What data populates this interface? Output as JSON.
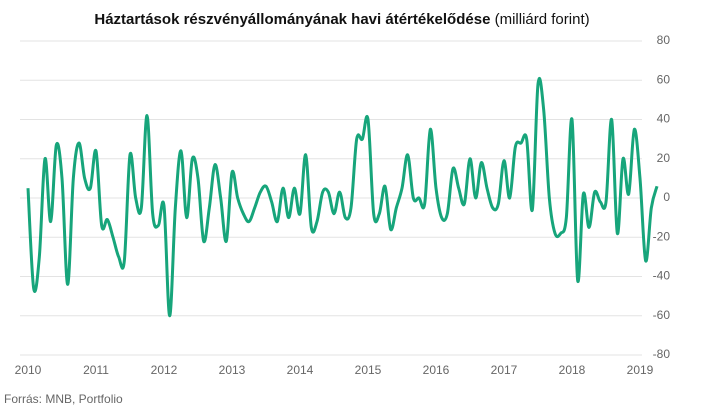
{
  "chart_data": {
    "type": "line",
    "title": "Háztartások részvényállományának havi átértékelődése",
    "subtitle": "(milliárd forint)",
    "source": "Forrás: MNB, Portfolio",
    "categories": [
      "2010",
      null,
      null,
      null,
      null,
      null,
      null,
      null,
      null,
      null,
      null,
      null,
      "2011",
      null,
      null,
      null,
      null,
      null,
      null,
      null,
      null,
      null,
      null,
      null,
      "2012",
      null,
      null,
      null,
      null,
      null,
      null,
      null,
      null,
      null,
      null,
      null,
      "2013",
      null,
      null,
      null,
      null,
      null,
      null,
      null,
      null,
      null,
      null,
      null,
      "2014",
      null,
      null,
      null,
      null,
      null,
      null,
      null,
      null,
      null,
      null,
      null,
      "2015",
      null,
      null,
      null,
      null,
      null,
      null,
      null,
      null,
      null,
      null,
      null,
      "2016",
      null,
      null,
      null,
      null,
      null,
      null,
      null,
      null,
      null,
      null,
      null,
      "2017",
      null,
      null,
      null,
      null,
      null,
      null,
      null,
      null,
      null,
      null,
      null,
      "2018",
      null,
      null,
      null,
      null,
      null,
      null,
      null,
      null,
      null,
      null,
      null,
      "2019",
      null,
      null,
      null
    ],
    "series": [
      {
        "color": "#17a57b",
        "values": [
          5,
          -46,
          -30,
          20,
          -12,
          27,
          10,
          -44,
          10,
          28,
          10,
          5,
          24,
          -14,
          -11,
          -20,
          -30,
          -32,
          22,
          0,
          -5,
          42,
          -8,
          -14,
          -4,
          -60,
          -5,
          24,
          -10,
          20,
          10,
          -22,
          -5,
          17,
          0,
          -22,
          13,
          0,
          -8,
          -12,
          -5,
          3,
          6,
          -2,
          -12,
          5,
          -10,
          5,
          -8,
          22,
          -15,
          -12,
          3,
          3,
          -8,
          3,
          -10,
          -5,
          30,
          30,
          40,
          -8,
          -8,
          6,
          -16,
          -5,
          5,
          22,
          0,
          0,
          -3,
          35,
          5,
          -10,
          -8,
          15,
          5,
          -3,
          20,
          0,
          18,
          5,
          -5,
          -3,
          19,
          0,
          26,
          28,
          30,
          -6,
          58,
          45,
          0,
          -18,
          -18,
          -10,
          40,
          -42,
          2,
          -15,
          3,
          -2,
          -2,
          40,
          -18,
          20,
          2,
          35,
          10,
          -32,
          -5,
          6
        ]
      }
    ],
    "ylim": [
      -80,
      80
    ],
    "yticks": [
      -80,
      -60,
      -40,
      -20,
      0,
      20,
      40,
      60,
      80
    ],
    "grid": true
  }
}
